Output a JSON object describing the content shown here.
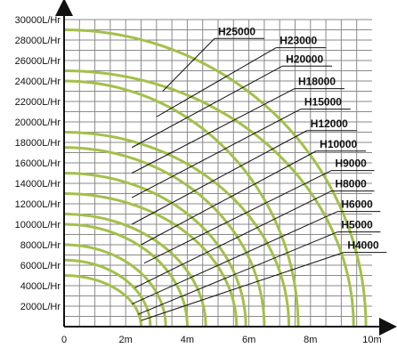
{
  "chart_data": {
    "type": "line",
    "title": "",
    "xlabel": "",
    "ylabel": "",
    "xlim": [
      0,
      10
    ],
    "ylim": [
      0,
      30000
    ],
    "x_ticks": [
      {
        "value": 0,
        "label": "0"
      },
      {
        "value": 2,
        "label": "2m"
      },
      {
        "value": 4,
        "label": "4m"
      },
      {
        "value": 6,
        "label": "6m"
      },
      {
        "value": 8,
        "label": "8m"
      },
      {
        "value": 10,
        "label": "10m"
      }
    ],
    "y_ticks": [
      {
        "value": 2000,
        "label": "2000L/Hr"
      },
      {
        "value": 4000,
        "label": "4000L/Hr"
      },
      {
        "value": 6000,
        "label": "6000L/Hr"
      },
      {
        "value": 8000,
        "label": "8000L/Hr"
      },
      {
        "value": 10000,
        "label": "10000L/Hr"
      },
      {
        "value": 12000,
        "label": "12000L/Hr"
      },
      {
        "value": 14000,
        "label": "14000L/Hr"
      },
      {
        "value": 16000,
        "label": "16000L/Hr"
      },
      {
        "value": 18000,
        "label": "18000L/Hr"
      },
      {
        "value": 20000,
        "label": "20000L/Hr"
      },
      {
        "value": 22000,
        "label": "22000L/Hr"
      },
      {
        "value": 24000,
        "label": "24000L/Hr"
      },
      {
        "value": 26000,
        "label": "26000L/Hr"
      },
      {
        "value": 28000,
        "label": "28000L/Hr"
      },
      {
        "value": 30000,
        "label": "30000L/Hr"
      }
    ],
    "grid": true,
    "line_color": "#a3c04a",
    "series": [
      {
        "name": "H25000",
        "max_flow": 29000,
        "max_head": 9.8,
        "label_value": [
          5.0,
          28500
        ],
        "leader_end": [
          3.2,
          23000
        ]
      },
      {
        "name": "H23000",
        "max_flow": 25000,
        "max_head": 9.4,
        "label_value": [
          7.0,
          27600
        ],
        "leader_end": [
          3.0,
          20500
        ]
      },
      {
        "name": "H20000",
        "max_flow": 24000,
        "max_head": 7.6,
        "label_value": [
          7.2,
          25800
        ],
        "leader_end": [
          2.2,
          17500
        ]
      },
      {
        "name": "H18000",
        "max_flow": 19000,
        "max_head": 7.3,
        "label_value": [
          7.6,
          23600
        ],
        "leader_end": [
          2.2,
          15000
        ]
      },
      {
        "name": "H15000",
        "max_flow": 17500,
        "max_head": 6.5,
        "label_value": [
          7.8,
          21600
        ],
        "leader_end": [
          2.2,
          12600
        ]
      },
      {
        "name": "H12000",
        "max_flow": 15000,
        "max_head": 5.9,
        "label_value": [
          8.0,
          19500
        ],
        "leader_end": [
          2.2,
          10000
        ]
      },
      {
        "name": "H10000",
        "max_flow": 13000,
        "max_head": 5.6,
        "label_value": [
          8.3,
          17500
        ],
        "leader_end": [
          2.5,
          8000
        ]
      },
      {
        "name": "H9000",
        "max_flow": 11000,
        "max_head": 4.6,
        "label_value": [
          8.8,
          15600
        ],
        "leader_end": [
          2.6,
          6200
        ]
      },
      {
        "name": "H8000",
        "max_flow": 10000,
        "max_head": 4.0,
        "label_value": [
          8.8,
          13600
        ],
        "leader_end": [
          2.3,
          3800
        ]
      },
      {
        "name": "H6000",
        "max_flow": 8000,
        "max_head": 3.3,
        "label_value": [
          9.0,
          11600
        ],
        "leader_end": [
          2.2,
          2200
        ]
      },
      {
        "name": "H5000",
        "max_flow": 6500,
        "max_head": 2.8,
        "label_value": [
          9.0,
          9600
        ],
        "leader_end": [
          2.4,
          1200
        ]
      },
      {
        "name": "H4000",
        "max_flow": 5000,
        "max_head": 2.5,
        "label_value": [
          9.2,
          7600
        ],
        "leader_end": [
          2.5,
          600
        ]
      }
    ]
  }
}
